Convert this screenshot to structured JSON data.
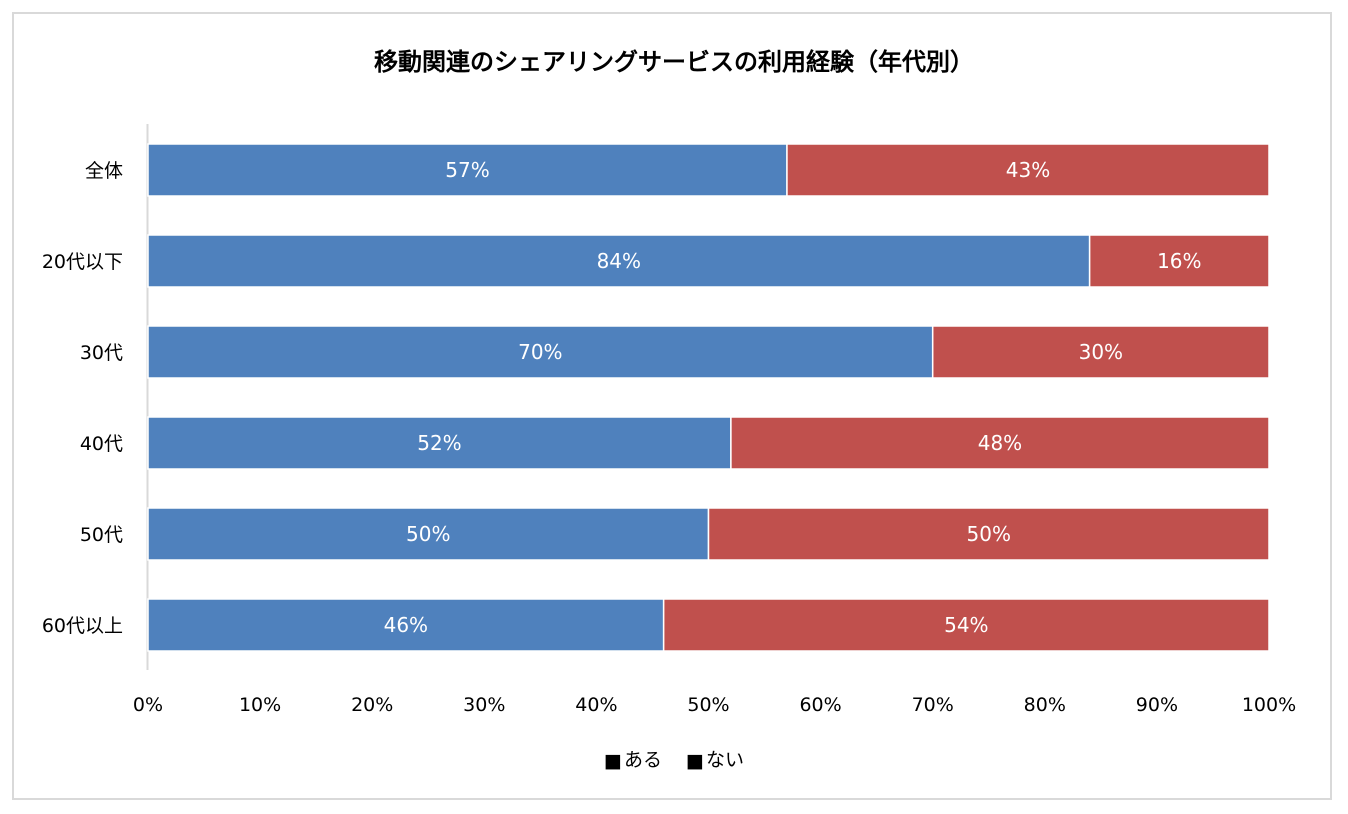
{
  "chart_data": {
    "type": "bar",
    "orientation": "horizontal",
    "stacked": true,
    "title": "移動関連のシェアリングサービスの利用経験（年代別）",
    "categories": [
      "全体",
      "20代以下",
      "30代",
      "40代",
      "50代",
      "60代以上"
    ],
    "series": [
      {
        "name": "ある",
        "color": "#4f81bd",
        "values": [
          57,
          84,
          70,
          52,
          50,
          46
        ]
      },
      {
        "name": "ない",
        "color": "#c0504d",
        "values": [
          43,
          16,
          30,
          48,
          50,
          54
        ]
      }
    ],
    "data_labels": [
      [
        "57%",
        "84%",
        "70%",
        "52%",
        "50%",
        "46%"
      ],
      [
        "43%",
        "16%",
        "30%",
        "48%",
        "50%",
        "54%"
      ]
    ],
    "xlim": [
      0,
      100
    ],
    "xticks": [
      0,
      10,
      20,
      30,
      40,
      50,
      60,
      70,
      80,
      90,
      100
    ],
    "xtick_labels": [
      "0%",
      "10%",
      "20%",
      "30%",
      "40%",
      "50%",
      "60%",
      "70%",
      "80%",
      "90%",
      "100%"
    ],
    "grid": false,
    "legend_position": "bottom",
    "legend": [
      "ある",
      "ない"
    ],
    "legend_marker": "■"
  }
}
